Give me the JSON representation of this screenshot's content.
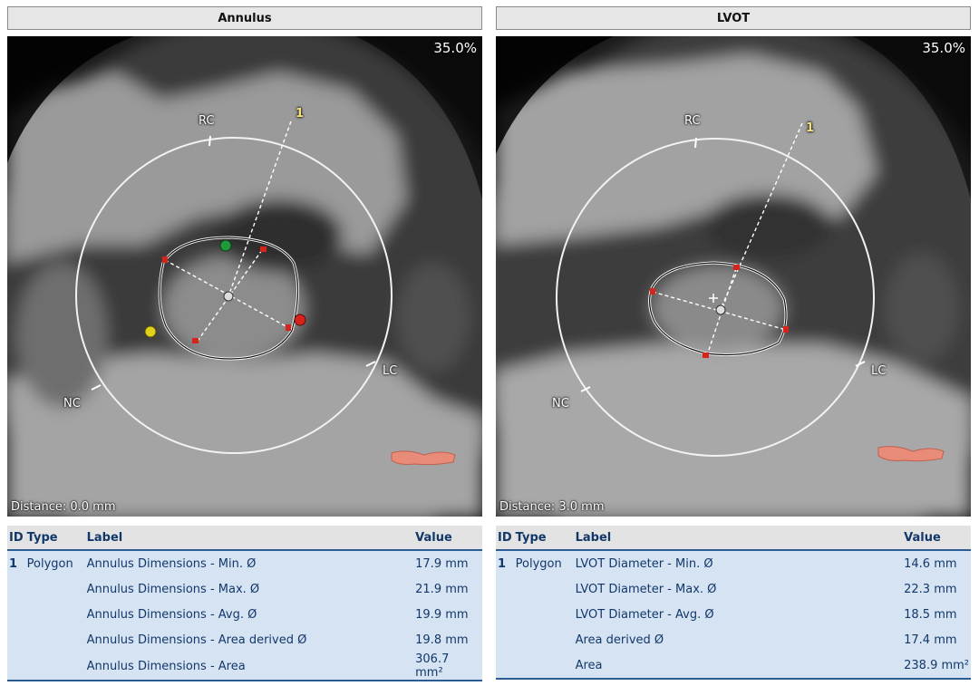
{
  "panels": [
    {
      "title": "Annulus",
      "zoom": "35.0%",
      "distance": "Distance: 0.0 mm",
      "orientation": {
        "rc": "RC",
        "lc": "LC",
        "nc": "NC",
        "mid": "1"
      },
      "table": {
        "headers": {
          "id": "ID",
          "type": "Type",
          "label": "Label",
          "value": "Value"
        },
        "rows": [
          {
            "id": "1",
            "type": "Polygon",
            "label": "Annulus Dimensions - Min. Ø",
            "value": "17.9 mm"
          },
          {
            "id": "",
            "type": "",
            "label": "Annulus Dimensions - Max. Ø",
            "value": "21.9 mm"
          },
          {
            "id": "",
            "type": "",
            "label": "Annulus Dimensions - Avg. Ø",
            "value": "19.9 mm"
          },
          {
            "id": "",
            "type": "",
            "label": "Annulus Dimensions - Area derived Ø",
            "value": "19.8 mm"
          },
          {
            "id": "",
            "type": "",
            "label": "Annulus Dimensions - Area",
            "value": "306.7 mm²"
          }
        ]
      }
    },
    {
      "title": "LVOT",
      "zoom": "35.0%",
      "distance": "Distance: 3.0 mm",
      "orientation": {
        "rc": "RC",
        "lc": "LC",
        "nc": "NC",
        "mid": "1"
      },
      "table": {
        "headers": {
          "id": "ID",
          "type": "Type",
          "label": "Label",
          "value": "Value"
        },
        "rows": [
          {
            "id": "1",
            "type": "Polygon",
            "label": "LVOT Diameter - Min. Ø",
            "value": "14.6 mm"
          },
          {
            "id": "",
            "type": "",
            "label": "LVOT Diameter - Max. Ø",
            "value": "22.3 mm"
          },
          {
            "id": "",
            "type": "",
            "label": "LVOT Diameter - Avg. Ø",
            "value": "18.5 mm"
          },
          {
            "id": "",
            "type": "",
            "label": "Area derived Ø",
            "value": "17.4 mm"
          },
          {
            "id": "",
            "type": "",
            "label": "Area",
            "value": "238.9 mm²"
          }
        ]
      }
    }
  ],
  "colors": {
    "header_bg": "#e6e6e6",
    "table_row_bg": "#d6e3f2",
    "table_text": "#12386a",
    "accent_line": "#2b5c93",
    "marker_green": "#1e9a3a",
    "marker_red": "#d8221c",
    "marker_yellow": "#e0d21a"
  }
}
